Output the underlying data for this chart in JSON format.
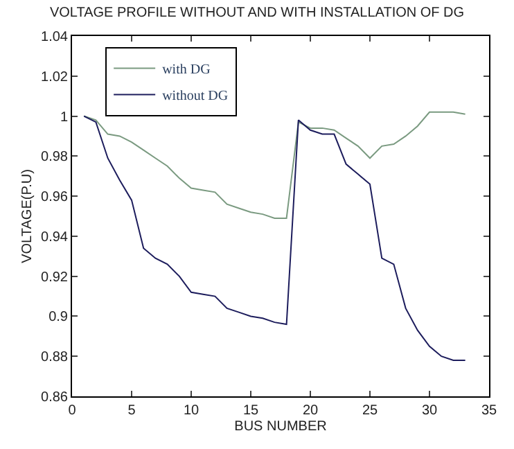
{
  "chart_data": {
    "type": "line",
    "title": "VOLTAGE PROFILE WITHOUT AND WITH INSTALLATION OF DG",
    "xlabel": "BUS NUMBER",
    "ylabel": "VOLTAGE(P.U)",
    "x": [
      1,
      2,
      3,
      4,
      5,
      6,
      7,
      8,
      9,
      10,
      11,
      12,
      13,
      14,
      15,
      16,
      17,
      18,
      19,
      20,
      21,
      22,
      23,
      24,
      25,
      26,
      27,
      28,
      29,
      30,
      31,
      32,
      33
    ],
    "series": [
      {
        "name": "with DG",
        "color": "#7a9a80",
        "values": [
          1.0,
          0.998,
          0.991,
          0.99,
          0.987,
          0.983,
          0.979,
          0.975,
          0.969,
          0.964,
          0.963,
          0.962,
          0.956,
          0.954,
          0.952,
          0.951,
          0.949,
          0.949,
          0.997,
          0.994,
          0.994,
          0.993,
          0.989,
          0.985,
          0.979,
          0.985,
          0.986,
          0.99,
          0.995,
          1.002,
          1.002,
          1.002,
          1.001
        ]
      },
      {
        "name": "without DG",
        "color": "#1c1c5c",
        "values": [
          1.0,
          0.997,
          0.979,
          0.968,
          0.958,
          0.934,
          0.929,
          0.926,
          0.92,
          0.912,
          0.911,
          0.91,
          0.904,
          0.902,
          0.9,
          0.899,
          0.897,
          0.896,
          0.998,
          0.993,
          0.991,
          0.991,
          0.976,
          0.971,
          0.966,
          0.929,
          0.926,
          0.904,
          0.893,
          0.885,
          0.88,
          0.878,
          0.878
        ]
      }
    ],
    "xlim": [
      0,
      35
    ],
    "xticks": [
      0,
      5,
      10,
      15,
      20,
      25,
      30,
      35
    ],
    "ylim": [
      0.86,
      1.04
    ],
    "yticks": [
      0.86,
      0.88,
      0.9,
      0.92,
      0.94,
      0.96,
      0.98,
      1,
      1.02,
      1.04
    ],
    "legend": "top left",
    "marker": "none",
    "line_style": "solid"
  }
}
